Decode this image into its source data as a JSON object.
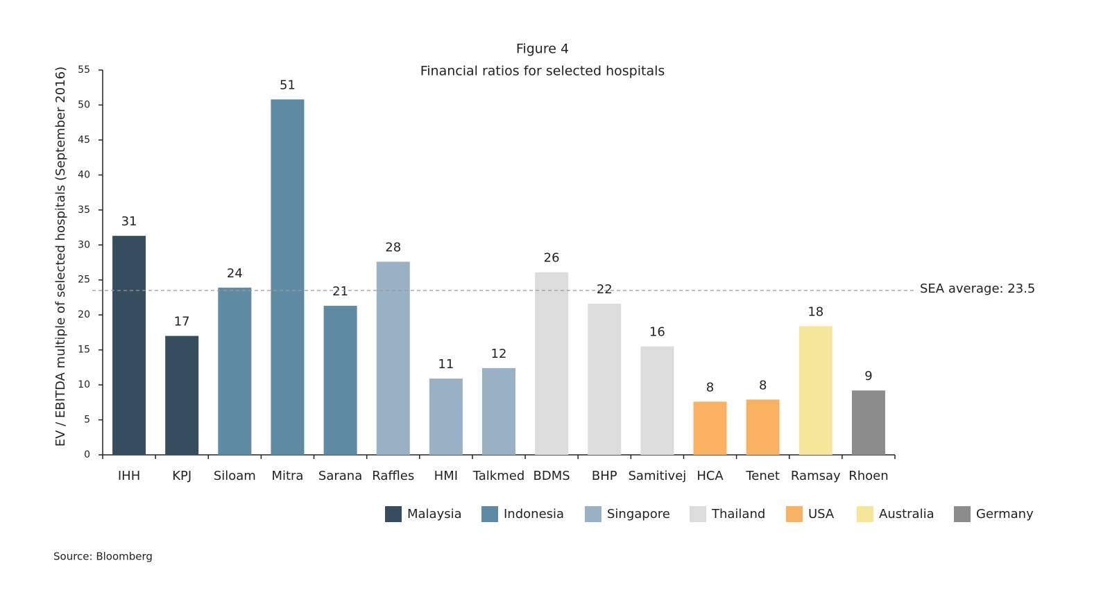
{
  "chart_data": {
    "type": "bar",
    "title": "Figure 4",
    "subtitle": "Financial ratios for selected hospitals",
    "y_label": "EV / EBITDA multiple of selected hospitals (September 2016)",
    "categories": [
      "IHH",
      "KPJ",
      "Siloam",
      "Mitra",
      "Sarana",
      "Raffles",
      "HMI",
      "Talkmed",
      "BDMS",
      "BHP",
      "Samitivej",
      "HCA",
      "Tenet",
      "Ramsay",
      "Rhoen"
    ],
    "values": [
      31.3,
      17.0,
      23.9,
      50.8,
      21.3,
      27.6,
      10.9,
      12.4,
      26.1,
      21.6,
      15.5,
      7.6,
      7.9,
      18.4,
      9.2
    ],
    "value_labels": [
      "31",
      "17",
      "24",
      "51",
      "21",
      "28",
      "11",
      "12",
      "26",
      "22",
      "16",
      "8",
      "8",
      "18",
      "9"
    ],
    "colors": [
      "#364d5e",
      "#364d5e",
      "#5e8aa4",
      "#5e8aa4",
      "#5e8aa4",
      "#98b1c5",
      "#98b1c5",
      "#98b1c5",
      "#dcdcdc",
      "#dcdcdc",
      "#dcdcdc",
      "#f9b262",
      "#f9b262",
      "#f5e69a",
      "#8c8c8c"
    ],
    "legend": [
      {
        "name": "Malaysia",
        "color": "#364d5e"
      },
      {
        "name": "Indonesia",
        "color": "#5e8aa4"
      },
      {
        "name": "Singapore",
        "color": "#98b1c5"
      },
      {
        "name": "Thailand",
        "color": "#dcdcdc"
      },
      {
        "name": "USA",
        "color": "#f9b262"
      },
      {
        "name": "Australia",
        "color": "#f5e69a"
      },
      {
        "name": "Germany",
        "color": "#8c8c8c"
      }
    ],
    "reference_line": {
      "value": 23.5,
      "label": "SEA average: 23.5"
    },
    "ylim": [
      0,
      55
    ],
    "yticks": [
      0,
      5,
      10,
      15,
      20,
      25,
      30,
      35,
      40,
      45,
      50,
      55
    ],
    "grid": false,
    "source": "Source: Bloomberg"
  }
}
